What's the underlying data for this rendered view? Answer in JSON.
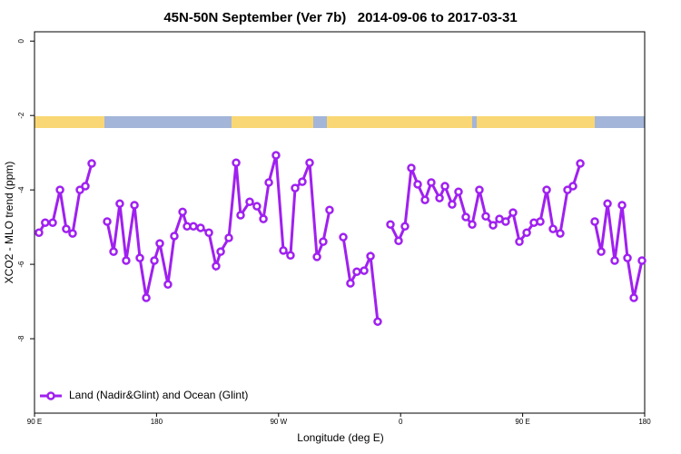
{
  "chart_data": {
    "type": "line",
    "title": "45N-50N September (Ver 7b)   2014-09-06 to 2017-03-31",
    "x_label": "Longitude (deg E)",
    "y_label": "XCO2 - MLO trend (ppm)",
    "xlim": [
      90,
      540
    ],
    "ylim": [
      -10,
      0.25
    ],
    "xticks": [
      {
        "value": 90,
        "label": "90 E"
      },
      {
        "value": 180,
        "label": "180"
      },
      {
        "value": 270,
        "label": "90 W"
      },
      {
        "value": 360,
        "label": "0"
      },
      {
        "value": 450,
        "label": "90 E"
      },
      {
        "value": 540,
        "label": "180"
      }
    ],
    "yticks": [
      0,
      -2,
      -4,
      -6,
      -8
    ],
    "legend": "bottomleft",
    "x": [
      93.3,
      97.9,
      103.4,
      108.8,
      113.4,
      118.1,
      123.5,
      127.5,
      132.2,
      138,
      143.6,
      148.3,
      152.9,
      157.6,
      163.7,
      167.7,
      172.4,
      178.4,
      182.4,
      188.4,
      193.1,
      199.2,
      202.5,
      207.2,
      212.5,
      218.6,
      223.9,
      227.3,
      233.3,
      238.7,
      242.0,
      248.7,
      254.0,
      258.8,
      262.8,
      268.1,
      273.5,
      278.8,
      282.2,
      287.5,
      292.9,
      298.3,
      302.9,
      307.6,
      312,
      317.7,
      323.0,
      327.7,
      333.1,
      337.8,
      343.1,
      348,
      352.5,
      358.5,
      363.2,
      367.9,
      372.6,
      378.0,
      382.6,
      388.7,
      392.7,
      398.0,
      402.7,
      408.1,
      412.8,
      418.1,
      422.8,
      428.2,
      432.9,
      437.5,
      442.9,
      447.6,
      453.0,
      458.3,
      463.0,
      467.7,
      472.4,
      477.7,
      483.1,
      487.1,
      492.5,
      498,
      503.2,
      507.9,
      512.6,
      517.9,
      523.3,
      527.3,
      532.0,
      538.0
    ],
    "series": [
      {
        "name": "Land (Nadir&Glint) and Ocean (Glint)",
        "color": "#a020f0",
        "values": [
          -5.15,
          -4.88,
          -4.88,
          -4.0,
          -5.05,
          -5.17,
          -4.0,
          -3.9,
          -3.29,
          null,
          -4.85,
          -5.66,
          -4.37,
          -5.9,
          -4.41,
          -5.83,
          -6.9,
          -5.9,
          -5.44,
          -6.54,
          -5.24,
          -4.59,
          -4.98,
          -4.98,
          -5.02,
          -5.15,
          -6.05,
          -5.66,
          -5.29,
          -3.27,
          -4.68,
          -4.32,
          -4.44,
          -4.78,
          -3.8,
          -3.07,
          -5.63,
          -5.76,
          -3.95,
          -3.78,
          -3.27,
          -5.8,
          -5.39,
          -4.54,
          null,
          -5.27,
          -6.51,
          -6.2,
          -6.17,
          -5.78,
          -7.54,
          null,
          -4.93,
          -5.37,
          -4.98,
          -3.41,
          -3.85,
          -4.27,
          -3.8,
          -4.22,
          -3.9,
          -4.39,
          -4.05,
          -4.73,
          -4.93,
          -4.0,
          -4.71,
          -4.95,
          -4.78,
          -4.85,
          -4.61,
          -5.39,
          -5.15,
          -4.88,
          -4.85,
          -4.0,
          -5.05,
          -5.17,
          -4.0,
          -3.9,
          -3.29,
          null,
          -4.85,
          -5.66,
          -4.37,
          -5.9,
          -4.41,
          -5.83,
          -6.9,
          -5.9
        ]
      }
    ]
  }
}
